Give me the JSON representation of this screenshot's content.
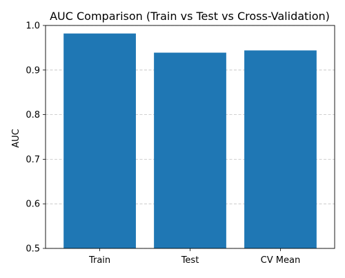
{
  "chart_data": {
    "type": "bar",
    "title": "AUC Comparison (Train vs Test vs Cross-Validation)",
    "xlabel": "",
    "ylabel": "AUC",
    "categories": [
      "Train",
      "Test",
      "CV Mean"
    ],
    "values": [
      0.982,
      0.939,
      0.944
    ],
    "ylim": [
      0.5,
      1.0
    ],
    "yticks": [
      0.5,
      0.6,
      0.7,
      0.8,
      0.9,
      1.0
    ],
    "ytick_labels": [
      "0.5",
      "0.6",
      "0.7",
      "0.8",
      "0.9",
      "1.0"
    ],
    "grid": "y-dashed",
    "bar_color": "#1f77b4",
    "grid_color": "#c0c0c0"
  }
}
